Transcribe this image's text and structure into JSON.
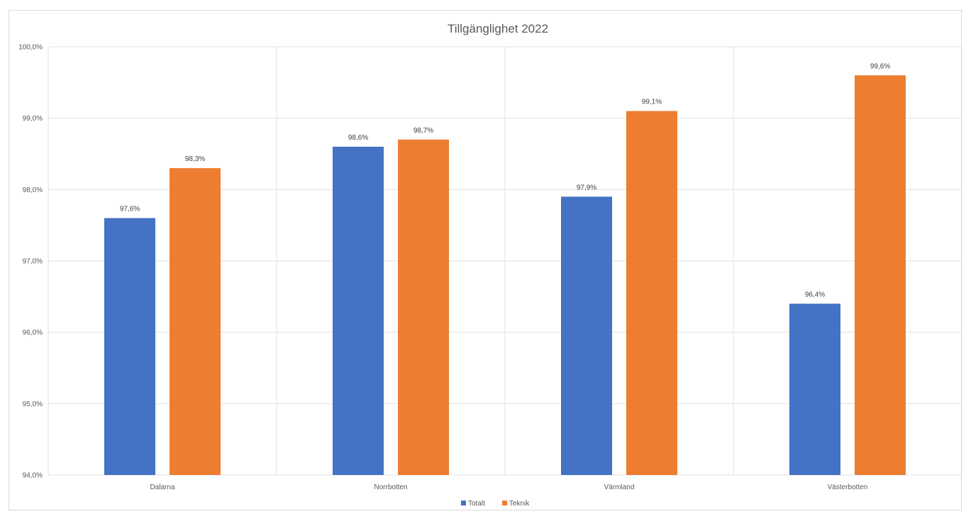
{
  "chart_data": {
    "type": "bar",
    "title": "Tillgänglighet 2022",
    "categories": [
      "Dalarna",
      "Norrbotten",
      "Värmland",
      "Västerbotten"
    ],
    "series": [
      {
        "name": "Totalt",
        "color": "#4472C4",
        "values": [
          97.6,
          98.6,
          97.9,
          96.4
        ],
        "labels": [
          "97,6%",
          "98,6%",
          "97,9%",
          "96,4%"
        ]
      },
      {
        "name": "Teknik",
        "color": "#ED7D31",
        "values": [
          98.3,
          98.7,
          99.1,
          99.6
        ],
        "labels": [
          "98,3%",
          "98,7%",
          "99,1%",
          "99,6%"
        ]
      }
    ],
    "ylim": [
      94.0,
      100.0
    ],
    "yticks": [
      94.0,
      95.0,
      96.0,
      97.0,
      98.0,
      99.0,
      100.0
    ],
    "ytick_labels": [
      "94,0%",
      "95,0%",
      "96,0%",
      "97,0%",
      "98,0%",
      "99,0%",
      "100,0%"
    ],
    "xlabel": "",
    "ylabel": "",
    "grid": true,
    "legend": "bottom-center"
  }
}
